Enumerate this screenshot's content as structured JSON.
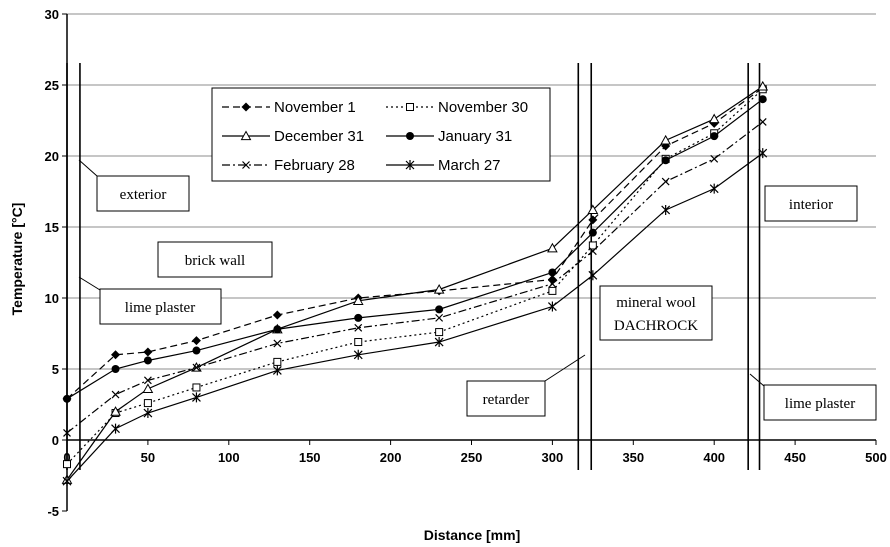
{
  "chart_data": {
    "type": "line",
    "title": "",
    "xlabel": "Distance [mm]",
    "ylabel": "Temperature [°C]",
    "xlim": [
      0,
      500
    ],
    "ylim": [
      -5,
      30
    ],
    "xticks": [
      0,
      50,
      100,
      150,
      200,
      250,
      300,
      350,
      400,
      450,
      500
    ],
    "yticks": [
      -5,
      0,
      5,
      10,
      15,
      20,
      25,
      30
    ],
    "grid": "horizontal",
    "legend_position": "top-left",
    "series": [
      {
        "name": "November 1",
        "style": "dashed",
        "marker": "diamond",
        "x": [
          0,
          30,
          50,
          80,
          130,
          180,
          230,
          300,
          325,
          370,
          400,
          430
        ],
        "y": [
          2.9,
          6.0,
          6.2,
          7.0,
          8.8,
          10.0,
          10.5,
          11.3,
          15.5,
          20.7,
          22.3,
          24.8
        ]
      },
      {
        "name": "November 30",
        "style": "dotted",
        "marker": "square-open",
        "x": [
          0,
          30,
          50,
          80,
          130,
          180,
          230,
          300,
          325,
          370,
          400,
          430
        ],
        "y": [
          -1.7,
          1.9,
          2.6,
          3.7,
          5.5,
          6.9,
          7.6,
          10.5,
          13.7,
          19.8,
          21.6,
          24.7
        ]
      },
      {
        "name": "December 31",
        "style": "solid",
        "marker": "triangle-open",
        "x": [
          0,
          30,
          50,
          80,
          130,
          180,
          230,
          300,
          325,
          370,
          400,
          430
        ],
        "y": [
          -2.8,
          2.0,
          3.6,
          5.1,
          7.8,
          9.8,
          10.6,
          13.5,
          16.2,
          21.1,
          22.6,
          24.9
        ]
      },
      {
        "name": "January 31",
        "style": "solid",
        "marker": "circle",
        "x": [
          0,
          30,
          50,
          80,
          130,
          180,
          230,
          300,
          325,
          370,
          400,
          430
        ],
        "y": [
          2.9,
          5.0,
          5.6,
          6.3,
          7.8,
          8.6,
          9.2,
          11.8,
          14.6,
          19.7,
          21.4,
          24.0
        ]
      },
      {
        "name": "February 28",
        "style": "dashdot",
        "marker": "x",
        "x": [
          0,
          30,
          50,
          80,
          130,
          180,
          230,
          300,
          325,
          370,
          400,
          430
        ],
        "y": [
          0.5,
          3.2,
          4.2,
          5.1,
          6.8,
          7.9,
          8.6,
          11.0,
          13.3,
          18.2,
          19.8,
          22.4
        ]
      },
      {
        "name": "March 27",
        "style": "solid",
        "marker": "star",
        "x": [
          0,
          30,
          50,
          80,
          130,
          180,
          230,
          300,
          325,
          370,
          400,
          430
        ],
        "y": [
          -2.9,
          0.8,
          1.9,
          3.0,
          4.9,
          6.0,
          6.9,
          9.4,
          11.6,
          16.2,
          17.7,
          20.2
        ]
      }
    ],
    "layer_boundaries_x": [
      0,
      8,
      316,
      324,
      421,
      428
    ],
    "annotations": [
      "exterior",
      "brick wall",
      "lime plaster",
      "mineral wool",
      "DACHROCK",
      "retarder",
      "interior",
      "lime plaster"
    ]
  }
}
